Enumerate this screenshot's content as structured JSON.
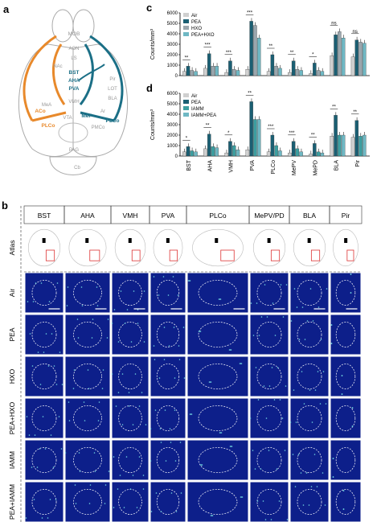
{
  "panels": {
    "a": "a",
    "b": "b",
    "c": "c",
    "d": "d"
  },
  "brain_labels": [
    "MOB",
    "AON",
    "LS",
    "NAc",
    "BST",
    "AHA",
    "PVA",
    "VMH",
    "MeA",
    "Pir",
    "LOT",
    "BLA",
    "ACo",
    "PLCo",
    "PMCo",
    "VTA",
    "PAG",
    "Ar",
    "Cb",
    "MeP",
    "PLCo"
  ],
  "brain_labels_positions_words": "anatomical diagram",
  "colors": {
    "orange": "#e8892b",
    "teal": "#1b6f86",
    "air": "#d0d0d0",
    "pea": "#1b5f73",
    "hxo": "#9aa6ad",
    "iamm": "#3c9ea0",
    "combo": "#6fb8c4",
    "tissue": "#0d1f8a"
  },
  "chart_data": [
    {
      "type": "bar",
      "panel": "c",
      "ylabel": "Counts/mm³",
      "yticks": [
        "0",
        "1000",
        "2000",
        "3000",
        "4000",
        "5000",
        "6000"
      ],
      "ylim": [
        0,
        6000
      ],
      "legend": [
        "Air",
        "PEA",
        "HXO",
        "PEA+HXO"
      ],
      "categories": [
        "BST",
        "AHA",
        "VMH",
        "PVA",
        "PLCo",
        "MePV",
        "MePD",
        "BLA",
        "Pir"
      ],
      "series": [
        {
          "name": "Air",
          "values": [
            400,
            700,
            300,
            600,
            400,
            300,
            200,
            1900,
            1800
          ]
        },
        {
          "name": "PEA",
          "values": [
            900,
            2100,
            1400,
            5200,
            2000,
            1400,
            1200,
            3900,
            3400
          ]
        },
        {
          "name": "HXO",
          "values": [
            500,
            900,
            600,
            4800,
            900,
            600,
            500,
            4200,
            3200
          ]
        },
        {
          "name": "PEA+HXO",
          "values": [
            400,
            900,
            500,
            3600,
            700,
            500,
            400,
            3600,
            3100
          ]
        }
      ],
      "sig": [
        "**",
        "***",
        "***",
        "***",
        "**",
        "**",
        "*",
        "ns",
        "ns"
      ]
    },
    {
      "type": "bar",
      "panel": "d",
      "ylabel": "Counts/mm³",
      "yticks": [
        "0",
        "1000",
        "2000",
        "3000",
        "4000",
        "5000",
        "6000"
      ],
      "ylim": [
        0,
        6000
      ],
      "legend": [
        "Air",
        "PEA",
        "IAMM",
        "IAMM+PEA"
      ],
      "categories": [
        "BST",
        "AHA",
        "VMH",
        "PVA",
        "PLCo",
        "MePV",
        "MePD",
        "BLA",
        "Pir"
      ],
      "series": [
        {
          "name": "Air",
          "values": [
            400,
            700,
            300,
            600,
            400,
            300,
            200,
            1900,
            1800
          ]
        },
        {
          "name": "PEA",
          "values": [
            900,
            2100,
            1400,
            5200,
            2000,
            1400,
            1200,
            3900,
            3400
          ]
        },
        {
          "name": "IAMM",
          "values": [
            500,
            900,
            1000,
            3500,
            1000,
            700,
            400,
            2000,
            1900
          ]
        },
        {
          "name": "IAMM+PEA",
          "values": [
            400,
            800,
            600,
            3500,
            500,
            400,
            300,
            2000,
            2000
          ]
        }
      ],
      "sig": [
        "*",
        "**",
        "*",
        "**",
        "***",
        "***",
        "**",
        "**",
        "**"
      ]
    }
  ],
  "grid": {
    "columns": [
      "BST",
      "AHA",
      "VMH",
      "PVA",
      "PLCo",
      "MePV/PD",
      "BLA",
      "Pir"
    ],
    "rows": [
      "Atlas",
      "Air",
      "PEA",
      "HXO",
      "PEA+HXO",
      "IAMM",
      "PEA+IAMM"
    ]
  }
}
